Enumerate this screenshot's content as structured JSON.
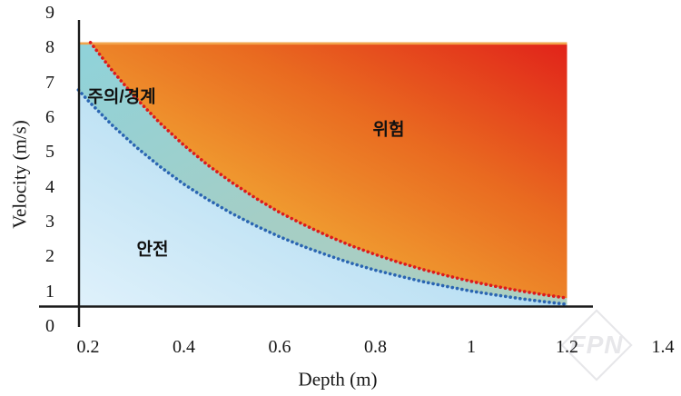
{
  "watermark": {
    "text": "FPN"
  },
  "chart_data": {
    "type": "area",
    "title": "",
    "xlabel": "Depth (m)",
    "ylabel": "Velocity (m/s)",
    "x_ticks": [
      "0.2",
      "0.4",
      "0.6",
      "0.8",
      "1",
      "1.2",
      "1.4"
    ],
    "x_tick_values": [
      0.2,
      0.4,
      0.6,
      0.8,
      1.0,
      1.2,
      1.4
    ],
    "y_ticks": [
      "0",
      "1",
      "2",
      "3",
      "4",
      "5",
      "6",
      "7",
      "8",
      "9"
    ],
    "y_tick_values": [
      0,
      1,
      2,
      3,
      4,
      5,
      6,
      7,
      8,
      9
    ],
    "xlim": [
      0.18,
      1.4
    ],
    "ylim": [
      0,
      9
    ],
    "grid": false,
    "legend": false,
    "plot": {
      "d_min": 0.18,
      "d_max": 1.2,
      "v_top": 8.17,
      "v_axis": 0.6
    },
    "axis_color": "#1a1a1a",
    "top_line_color": "#f2a44c",
    "zones": [
      {
        "id": "safe",
        "label": "안전",
        "gradient": {
          "dir": "bl-tr",
          "stops": [
            "#dff1fb",
            "#bfe2f4",
            "#8fccec",
            "#6abee4"
          ],
          "offsets": [
            0,
            0.4,
            0.75,
            1
          ]
        }
      },
      {
        "id": "caution",
        "label": "주의/경계",
        "gradient": {
          "dir": "tl-br",
          "stops": [
            "#8fd2da",
            "#a5cec5",
            "#aecfc0"
          ],
          "offsets": [
            0,
            0.55,
            1
          ]
        }
      },
      {
        "id": "danger",
        "label": "위험",
        "gradient": {
          "dir": "bl-tr",
          "stops": [
            "#f6be47",
            "#f09c30",
            "#e96a20",
            "#e1221a"
          ],
          "offsets": [
            0,
            0.35,
            0.65,
            1
          ]
        }
      }
    ],
    "series": [
      {
        "name": "danger-threshold",
        "style": "dotted",
        "color": "#dd1a1c",
        "points": [
          [
            0.205,
            8.17
          ],
          [
            0.21,
            8.08
          ],
          [
            0.25,
            7.37
          ],
          [
            0.3,
            6.57
          ],
          [
            0.35,
            5.86
          ],
          [
            0.4,
            5.22
          ],
          [
            0.45,
            4.65
          ],
          [
            0.5,
            4.15
          ],
          [
            0.55,
            3.7
          ],
          [
            0.6,
            3.29
          ],
          [
            0.65,
            2.94
          ],
          [
            0.7,
            2.62
          ],
          [
            0.75,
            2.33
          ],
          [
            0.8,
            2.08
          ],
          [
            0.85,
            1.85
          ],
          [
            0.9,
            1.65
          ],
          [
            0.95,
            1.47
          ],
          [
            1.0,
            1.31
          ],
          [
            1.05,
            1.17
          ],
          [
            1.1,
            1.04
          ],
          [
            1.15,
            0.93
          ],
          [
            1.2,
            0.83
          ]
        ]
      },
      {
        "name": "caution-threshold",
        "style": "dotted",
        "color": "#2a65b2",
        "points": [
          [
            0.18,
            6.81
          ],
          [
            0.2,
            6.5
          ],
          [
            0.25,
            5.8
          ],
          [
            0.3,
            5.17
          ],
          [
            0.35,
            4.61
          ],
          [
            0.4,
            4.1
          ],
          [
            0.45,
            3.66
          ],
          [
            0.5,
            3.26
          ],
          [
            0.55,
            2.91
          ],
          [
            0.6,
            2.59
          ],
          [
            0.65,
            2.31
          ],
          [
            0.7,
            2.06
          ],
          [
            0.75,
            1.83
          ],
          [
            0.8,
            1.63
          ],
          [
            0.85,
            1.46
          ],
          [
            0.9,
            1.3
          ],
          [
            0.95,
            1.16
          ],
          [
            1.0,
            1.03
          ],
          [
            1.05,
            0.92
          ],
          [
            1.1,
            0.82
          ],
          [
            1.15,
            0.73
          ],
          [
            1.2,
            0.65
          ]
        ]
      }
    ]
  }
}
